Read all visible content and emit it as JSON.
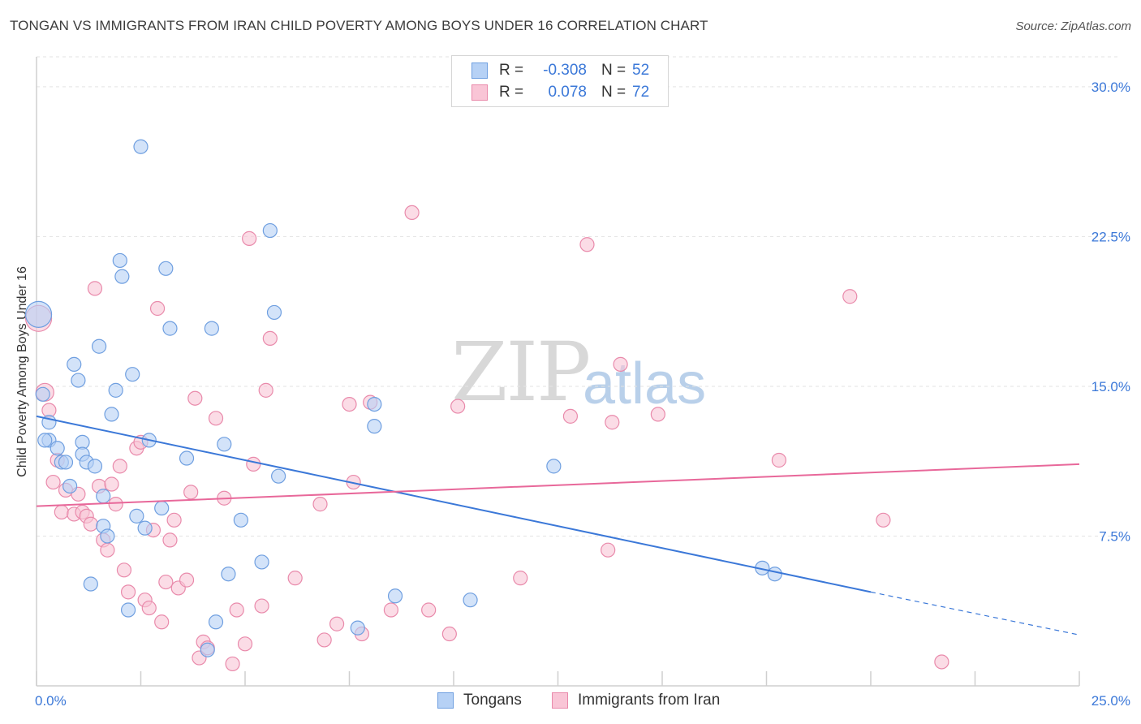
{
  "title": "TONGAN VS IMMIGRANTS FROM IRAN CHILD POVERTY AMONG BOYS UNDER 16 CORRELATION CHART",
  "source": "Source: ZipAtlas.com",
  "watermark": {
    "zip": "ZIP",
    "atlas": "atlas"
  },
  "legend": {
    "rows": [
      {
        "r_label": "R =",
        "r_value": "-0.308",
        "n_label": "N =",
        "n_value": "52",
        "fill": "#b6d1f5",
        "stroke": "#6f9fe0"
      },
      {
        "r_label": "R =",
        "r_value": "0.078",
        "n_label": "N =",
        "n_value": "72",
        "fill": "#f9c5d6",
        "stroke": "#e98aab"
      }
    ]
  },
  "bottom_legend": [
    "Tongans",
    "Immigrants from Iran"
  ],
  "chart_data": {
    "type": "scatter",
    "title": "TONGAN VS IMMIGRANTS FROM IRAN CHILD POVERTY AMONG BOYS UNDER 16 CORRELATION CHART",
    "xlabel": "",
    "ylabel": "Child Poverty Among Boys Under 16",
    "xlim": [
      0,
      25
    ],
    "ylim": [
      0,
      31.5
    ],
    "x_tick_labels": [
      "0.0%",
      "25.0%"
    ],
    "y_ticks": [
      7.5,
      15.0,
      22.5,
      30.0
    ],
    "y_tick_labels": [
      "7.5%",
      "15.0%",
      "22.5%",
      "30.0%"
    ],
    "grid": true,
    "colors": {
      "blue": "#3b78d8",
      "pink": "#e8689a"
    },
    "series": [
      {
        "name": "Tongans",
        "color": "#6f9fe0",
        "fill": "#b6d1f5",
        "points": [
          [
            0.05,
            18.6
          ],
          [
            0.15,
            14.6
          ],
          [
            0.3,
            13.2
          ],
          [
            0.3,
            12.3
          ],
          [
            0.5,
            11.9
          ],
          [
            0.6,
            11.2
          ],
          [
            0.7,
            11.2
          ],
          [
            0.8,
            10.0
          ],
          [
            0.9,
            16.1
          ],
          [
            1.0,
            15.3
          ],
          [
            1.1,
            12.2
          ],
          [
            1.1,
            11.6
          ],
          [
            1.2,
            11.2
          ],
          [
            1.4,
            11.0
          ],
          [
            1.5,
            17.0
          ],
          [
            1.6,
            9.5
          ],
          [
            1.6,
            8.0
          ],
          [
            1.7,
            7.5
          ],
          [
            1.3,
            5.1
          ],
          [
            1.8,
            13.6
          ],
          [
            1.9,
            14.8
          ],
          [
            2.0,
            21.3
          ],
          [
            2.05,
            20.5
          ],
          [
            2.2,
            3.8
          ],
          [
            2.3,
            15.6
          ],
          [
            2.4,
            8.5
          ],
          [
            2.5,
            27.0
          ],
          [
            2.6,
            7.9
          ],
          [
            2.7,
            12.3
          ],
          [
            3.0,
            8.9
          ],
          [
            3.1,
            20.9
          ],
          [
            3.2,
            17.9
          ],
          [
            3.6,
            11.4
          ],
          [
            4.2,
            17.9
          ],
          [
            4.3,
            3.2
          ],
          [
            4.5,
            12.1
          ],
          [
            4.6,
            5.6
          ],
          [
            4.9,
            8.3
          ],
          [
            5.4,
            6.2
          ],
          [
            5.6,
            22.8
          ],
          [
            5.7,
            18.7
          ],
          [
            5.8,
            10.5
          ],
          [
            4.1,
            1.8
          ],
          [
            7.7,
            2.9
          ],
          [
            8.1,
            14.1
          ],
          [
            8.1,
            13.0
          ],
          [
            8.6,
            4.5
          ],
          [
            10.4,
            4.3
          ],
          [
            12.4,
            11.0
          ],
          [
            17.4,
            5.9
          ],
          [
            17.7,
            5.6
          ],
          [
            0.2,
            12.3
          ]
        ]
      },
      {
        "name": "Immigrants from Iran",
        "color": "#e98aab",
        "fill": "#f9c5d6",
        "points": [
          [
            0.05,
            18.4
          ],
          [
            0.2,
            14.7
          ],
          [
            0.3,
            13.8
          ],
          [
            0.4,
            10.2
          ],
          [
            0.5,
            11.3
          ],
          [
            0.6,
            8.7
          ],
          [
            0.7,
            9.8
          ],
          [
            0.9,
            8.6
          ],
          [
            1.0,
            9.6
          ],
          [
            1.1,
            8.7
          ],
          [
            1.2,
            8.5
          ],
          [
            1.3,
            8.1
          ],
          [
            1.4,
            19.9
          ],
          [
            1.5,
            10.0
          ],
          [
            1.6,
            7.3
          ],
          [
            1.7,
            6.8
          ],
          [
            1.8,
            10.1
          ],
          [
            1.9,
            9.1
          ],
          [
            2.0,
            11.0
          ],
          [
            2.1,
            5.8
          ],
          [
            2.2,
            4.7
          ],
          [
            2.4,
            11.9
          ],
          [
            2.5,
            12.2
          ],
          [
            2.6,
            4.3
          ],
          [
            2.7,
            3.9
          ],
          [
            2.8,
            7.8
          ],
          [
            2.9,
            18.9
          ],
          [
            3.0,
            3.2
          ],
          [
            3.1,
            5.2
          ],
          [
            3.2,
            7.3
          ],
          [
            3.3,
            8.3
          ],
          [
            3.4,
            4.9
          ],
          [
            3.6,
            5.3
          ],
          [
            3.7,
            9.7
          ],
          [
            3.8,
            14.4
          ],
          [
            3.9,
            1.4
          ],
          [
            4.0,
            2.2
          ],
          [
            4.1,
            1.9
          ],
          [
            4.3,
            13.4
          ],
          [
            4.5,
            9.4
          ],
          [
            4.7,
            1.1
          ],
          [
            4.8,
            3.8
          ],
          [
            5.0,
            2.1
          ],
          [
            5.1,
            22.4
          ],
          [
            5.2,
            11.1
          ],
          [
            5.4,
            4.0
          ],
          [
            5.5,
            14.8
          ],
          [
            5.6,
            17.4
          ],
          [
            6.2,
            5.4
          ],
          [
            6.8,
            9.1
          ],
          [
            6.9,
            2.3
          ],
          [
            7.2,
            3.1
          ],
          [
            7.5,
            14.1
          ],
          [
            7.6,
            10.2
          ],
          [
            7.8,
            2.6
          ],
          [
            8.0,
            14.2
          ],
          [
            8.5,
            3.8
          ],
          [
            9.0,
            23.7
          ],
          [
            9.4,
            3.8
          ],
          [
            9.9,
            2.6
          ],
          [
            10.1,
            14.0
          ],
          [
            11.6,
            5.4
          ],
          [
            12.8,
            13.5
          ],
          [
            13.2,
            22.1
          ],
          [
            13.7,
            6.8
          ],
          [
            13.8,
            13.2
          ],
          [
            14.0,
            16.1
          ],
          [
            14.9,
            13.6
          ],
          [
            17.8,
            11.3
          ],
          [
            19.5,
            19.5
          ],
          [
            20.3,
            8.3
          ],
          [
            21.7,
            1.2
          ]
        ]
      }
    ],
    "trendlines": [
      {
        "series": "Tongans",
        "x0": 0.0,
        "y0": 13.5,
        "x1": 20.0,
        "y1": 4.7,
        "dash_to_x": 25.0,
        "dash_to_y": 2.55
      },
      {
        "series": "Immigrants from Iran",
        "x0": 0.0,
        "y0": 9.0,
        "x1": 25.0,
        "y1": 11.1
      }
    ]
  }
}
